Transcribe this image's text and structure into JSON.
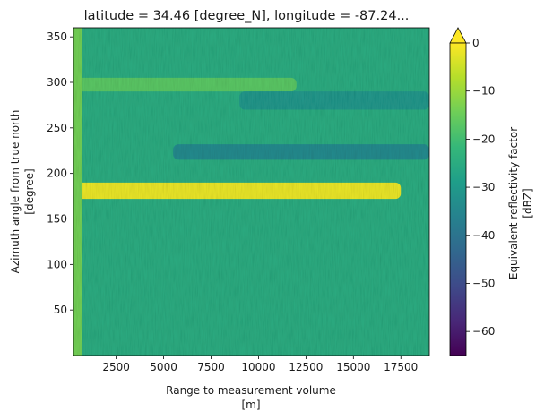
{
  "chart_data": {
    "type": "heatmap",
    "title": "latitude = 34.46 [degree_N], longitude = -87.24...",
    "xlabel_line1": "Range to measurement volume",
    "xlabel_line2": "[m]",
    "ylabel_line1": "Azimuth angle from true north",
    "ylabel_line2": "[degree]",
    "xlim": [
      250,
      19000
    ],
    "ylim": [
      0,
      360
    ],
    "x_ticks": [
      2500,
      5000,
      7500,
      10000,
      12500,
      15000,
      17500
    ],
    "y_ticks": [
      50,
      100,
      150,
      200,
      250,
      300,
      350
    ],
    "colorbar": {
      "label_line1": "Equivalent reflectivity factor",
      "label_line2": "[dBZ]",
      "range": [
        -65,
        0
      ],
      "ticks": [
        0,
        -10,
        -20,
        -30,
        -40,
        -50,
        -60
      ],
      "extend": "max",
      "colormap": "viridis"
    },
    "background_level_dbz": -25,
    "features": [
      {
        "azimuth": [
          172,
          190
        ],
        "range": [
          250,
          17500
        ],
        "dbz": -2,
        "note": "strong echo band"
      },
      {
        "azimuth": [
          290,
          305
        ],
        "range": [
          250,
          12000
        ],
        "dbz": -17
      },
      {
        "azimuth": [
          215,
          232
        ],
        "range": [
          5500,
          19000
        ],
        "dbz": -34
      },
      {
        "azimuth": [
          270,
          290
        ],
        "range": [
          9000,
          19000
        ],
        "dbz": -31
      },
      {
        "azimuth": [
          0,
          360
        ],
        "range": [
          250,
          700
        ],
        "dbz": -14
      }
    ]
  },
  "colors": {
    "viridis_stops": [
      "#440154",
      "#482878",
      "#3e4a89",
      "#31688e",
      "#26828e",
      "#1f9e89",
      "#35b779",
      "#6ece58",
      "#b5de2b",
      "#fde725"
    ]
  }
}
